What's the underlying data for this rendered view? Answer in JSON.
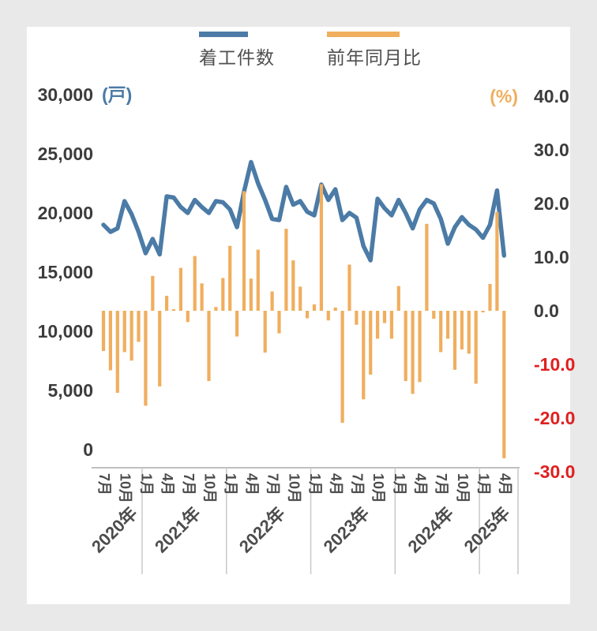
{
  "legend": {
    "line_label": "着工件数",
    "bar_label": "前年同月比"
  },
  "colors": {
    "line": "#4b7ba6",
    "bar": "#f0ae5e",
    "text_dark": "#3c3c3c",
    "text_gray": "#4c4c4c",
    "negative_red": "#e02020",
    "axis_line": "#bfbfbf",
    "separator": "#c9c9c9",
    "card_bg": "#ffffff",
    "page_bg": "#e9e9e9"
  },
  "left_axis": {
    "unit": "(戸)",
    "ticks": [
      {
        "label": "30,000",
        "value": 30000
      },
      {
        "label": "25,000",
        "value": 25000
      },
      {
        "label": "20,000",
        "value": 20000
      },
      {
        "label": "15,000",
        "value": 15000
      },
      {
        "label": "10,000",
        "value": 10000
      },
      {
        "label": "5,000",
        "value": 5000
      },
      {
        "label": "0",
        "value": 0
      }
    ]
  },
  "right_axis": {
    "unit": "(%)",
    "ticks": [
      {
        "label": "40.0",
        "value": 40
      },
      {
        "label": "30.0",
        "value": 30
      },
      {
        "label": "20.0",
        "value": 20
      },
      {
        "label": "10.0",
        "value": 10
      },
      {
        "label": "0.0",
        "value": 0
      },
      {
        "label": "-10.0",
        "value": -10
      },
      {
        "label": "-20.0",
        "value": -20
      },
      {
        "label": "-30.0",
        "value": -30
      }
    ]
  },
  "chart_data": {
    "type": "line+bar",
    "x": [
      "2020-07",
      "2020-08",
      "2020-09",
      "2020-10",
      "2020-11",
      "2020-12",
      "2021-01",
      "2021-02",
      "2021-03",
      "2021-04",
      "2021-05",
      "2021-06",
      "2021-07",
      "2021-08",
      "2021-09",
      "2021-10",
      "2021-11",
      "2021-12",
      "2022-01",
      "2022-02",
      "2022-03",
      "2022-04",
      "2022-05",
      "2022-06",
      "2022-07",
      "2022-08",
      "2022-09",
      "2022-10",
      "2022-11",
      "2022-12",
      "2023-01",
      "2023-02",
      "2023-03",
      "2023-04",
      "2023-05",
      "2023-06",
      "2023-07",
      "2023-08",
      "2023-09",
      "2023-10",
      "2023-11",
      "2023-12",
      "2024-01",
      "2024-02",
      "2024-03",
      "2024-04",
      "2024-05",
      "2024-06",
      "2024-07",
      "2024-08",
      "2024-09",
      "2024-10",
      "2024-11",
      "2024-12",
      "2025-01",
      "2025-02",
      "2025-03",
      "2025-04"
    ],
    "series": [
      {
        "name": "着工件数",
        "type": "line",
        "axis": "left",
        "unit": "戸",
        "values": [
          19000,
          18400,
          18700,
          21000,
          19900,
          18400,
          16600,
          17800,
          16500,
          21400,
          21300,
          20500,
          20000,
          21100,
          20500,
          20000,
          21000,
          20900,
          20300,
          18800,
          21800,
          24300,
          22500,
          21100,
          19500,
          19400,
          22200,
          20700,
          21000,
          20100,
          19800,
          22400,
          21100,
          22000,
          19400,
          20000,
          19600,
          17200,
          16000,
          21200,
          20400,
          19800,
          21100,
          20000,
          18700,
          20300,
          21100,
          20800,
          19500,
          17400,
          18800,
          19650,
          19000,
          18600,
          17900,
          19000,
          21900,
          16400
        ]
      },
      {
        "name": "前年同月比",
        "type": "bar",
        "axis": "right",
        "unit": "%",
        "values": [
          -7.5,
          -11.1,
          -15.3,
          -7.7,
          -9.3,
          -5.8,
          -17.7,
          6.5,
          -14.1,
          2.8,
          0.3,
          8.0,
          -2.1,
          10.2,
          5.1,
          -13.1,
          0.7,
          6.1,
          12.1,
          -4.8,
          22.3,
          6.0,
          11.4,
          -7.8,
          3.6,
          -4.2,
          15.3,
          9.4,
          4.5,
          -1.4,
          1.2,
          23.6,
          -1.8,
          0.6,
          -20.9,
          8.6,
          -2.6,
          -16.5,
          -11.9,
          -5.2,
          -2.3,
          -5.2,
          4.6,
          -13.1,
          -15.5,
          -13.3,
          16.2,
          -1.5,
          -7.7,
          -5.2,
          -11.0,
          -7.2,
          -8.0,
          -13.6,
          -0.3,
          5.0,
          18.4,
          -27.5
        ]
      }
    ],
    "x_month_ticks": [
      {
        "i": 0,
        "label": "7月"
      },
      {
        "i": 3,
        "label": "10月"
      },
      {
        "i": 6,
        "label": "1月"
      },
      {
        "i": 9,
        "label": "4月"
      },
      {
        "i": 12,
        "label": "7月"
      },
      {
        "i": 15,
        "label": "10月"
      },
      {
        "i": 18,
        "label": "1月"
      },
      {
        "i": 21,
        "label": "4月"
      },
      {
        "i": 24,
        "label": "7月"
      },
      {
        "i": 27,
        "label": "10月"
      },
      {
        "i": 30,
        "label": "1月"
      },
      {
        "i": 33,
        "label": "4月"
      },
      {
        "i": 36,
        "label": "7月"
      },
      {
        "i": 39,
        "label": "10月"
      },
      {
        "i": 42,
        "label": "1月"
      },
      {
        "i": 45,
        "label": "4月"
      },
      {
        "i": 48,
        "label": "7月"
      },
      {
        "i": 51,
        "label": "10月"
      },
      {
        "i": 54,
        "label": "1月"
      },
      {
        "i": 57,
        "label": "4月"
      }
    ],
    "x_year_labels": [
      {
        "label": "2020年",
        "start": 0,
        "end": 5
      },
      {
        "label": "2021年",
        "start": 6,
        "end": 17
      },
      {
        "label": "2022年",
        "start": 18,
        "end": 29
      },
      {
        "label": "2023年",
        "start": 30,
        "end": 41
      },
      {
        "label": "2024年",
        "start": 42,
        "end": 53
      },
      {
        "label": "2025年",
        "start": 54,
        "end": 57
      }
    ],
    "ylim_left": [
      0,
      30000
    ],
    "ylim_right": [
      -30,
      40
    ],
    "grid": false,
    "legend_position": "top"
  }
}
